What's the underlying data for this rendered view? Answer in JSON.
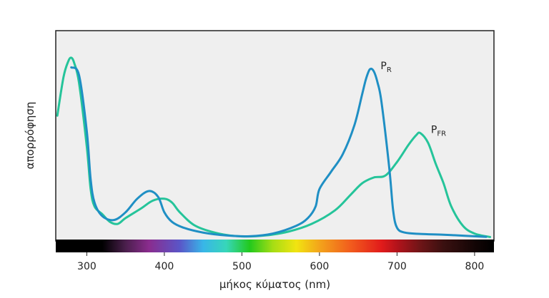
{
  "chart_data": {
    "type": "line",
    "title": "",
    "xlabel": "μήκος κύματος (nm)",
    "ylabel": "απορρόφηση",
    "xlim": [
      260,
      825
    ],
    "ylim": [
      0,
      1
    ],
    "x_ticks": [
      300,
      400,
      500,
      600,
      700,
      800
    ],
    "x_tick_labels": [
      "300",
      "400",
      "500",
      "600",
      "700",
      "800"
    ],
    "grid": false,
    "background_color": "#efefef",
    "series": [
      {
        "name": "PR",
        "label_main": "P",
        "label_sub": "R",
        "color": "#1f8fc4",
        "x": [
          280,
          290,
          300,
          305,
          310,
          320,
          335,
          350,
          365,
          380,
          392,
          400,
          410,
          425,
          450,
          480,
          510,
          540,
          570,
          585,
          595,
          600,
          615,
          630,
          645,
          655,
          660,
          665,
          670,
          675,
          680,
          690,
          695,
          700,
          710,
          730,
          760,
          790,
          815
        ],
        "y": [
          0.88,
          0.84,
          0.55,
          0.3,
          0.18,
          0.11,
          0.09,
          0.13,
          0.2,
          0.24,
          0.21,
          0.13,
          0.08,
          0.05,
          0.025,
          0.01,
          0.006,
          0.02,
          0.06,
          0.1,
          0.16,
          0.25,
          0.34,
          0.43,
          0.58,
          0.74,
          0.82,
          0.87,
          0.86,
          0.8,
          0.7,
          0.36,
          0.14,
          0.05,
          0.025,
          0.018,
          0.014,
          0.008,
          0.003
        ]
      },
      {
        "name": "PFR",
        "label_main": "P",
        "label_sub": "FR",
        "color": "#25c49a",
        "x": [
          262,
          270,
          276,
          280,
          284,
          290,
          300,
          305,
          310,
          320,
          330,
          340,
          350,
          370,
          385,
          400,
          410,
          420,
          440,
          470,
          500,
          530,
          560,
          590,
          620,
          640,
          655,
          670,
          685,
          700,
          715,
          725,
          730,
          740,
          750,
          760,
          770,
          785,
          800,
          820
        ],
        "y": [
          0.63,
          0.83,
          0.91,
          0.93,
          0.9,
          0.8,
          0.47,
          0.25,
          0.16,
          0.12,
          0.08,
          0.07,
          0.1,
          0.15,
          0.19,
          0.2,
          0.18,
          0.13,
          0.06,
          0.02,
          0.005,
          0.01,
          0.03,
          0.07,
          0.14,
          0.22,
          0.28,
          0.31,
          0.32,
          0.39,
          0.48,
          0.53,
          0.54,
          0.49,
          0.38,
          0.28,
          0.16,
          0.06,
          0.02,
          0.002
        ]
      }
    ],
    "spectrum_bar": {
      "stops": [
        {
          "x": 260,
          "color": "#000000"
        },
        {
          "x": 320,
          "color": "#000000"
        },
        {
          "x": 350,
          "color": "#4a1f4c"
        },
        {
          "x": 380,
          "color": "#8a2c8e"
        },
        {
          "x": 420,
          "color": "#5a56c8"
        },
        {
          "x": 450,
          "color": "#38b6e8"
        },
        {
          "x": 480,
          "color": "#37d6b9"
        },
        {
          "x": 510,
          "color": "#22c91d"
        },
        {
          "x": 540,
          "color": "#a6dd14"
        },
        {
          "x": 570,
          "color": "#f1e411"
        },
        {
          "x": 600,
          "color": "#f3a41b"
        },
        {
          "x": 640,
          "color": "#f25c1d"
        },
        {
          "x": 680,
          "color": "#e11b1b"
        },
        {
          "x": 700,
          "color": "#b3131b"
        },
        {
          "x": 730,
          "color": "#6e1517"
        },
        {
          "x": 760,
          "color": "#3a1010"
        },
        {
          "x": 800,
          "color": "#130505"
        },
        {
          "x": 825,
          "color": "#000000"
        }
      ]
    }
  }
}
